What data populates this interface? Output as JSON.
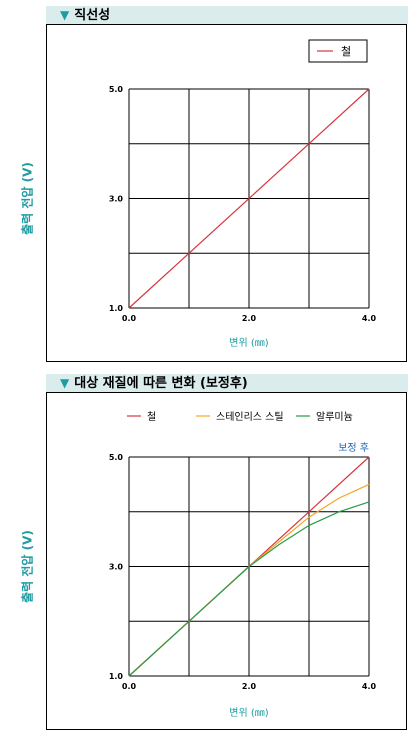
{
  "charts": [
    {
      "header": "직선성",
      "ylabel": "출력 전압 (V)",
      "xlabel": "변위 (㎜)",
      "chart_data": {
        "type": "line",
        "title": "직선성",
        "xlabel": "변위 (㎜)",
        "ylabel": "출력 전압 (V)",
        "xlim": [
          0,
          4
        ],
        "ylim": [
          1,
          5
        ],
        "xticks": [
          "0.0",
          "2.0",
          "4.0"
        ],
        "yticks": [
          "1.0",
          "3.0",
          "5.0"
        ],
        "grid": true,
        "legend": "top-right",
        "series": [
          {
            "name": "철",
            "color": "#d9363e",
            "x": [
              0,
              4
            ],
            "y": [
              1,
              5
            ]
          }
        ]
      }
    },
    {
      "header": "대상 재질에 따른 변화 (보정후)",
      "ylabel": "출력 전압 (V)",
      "xlabel": "변위 (㎜)",
      "annotation": "보정 후",
      "chart_data": {
        "type": "line",
        "title": "대상 재질에 따른 변화 (보정후)",
        "xlabel": "변위 (㎜)",
        "ylabel": "출력 전압 (V)",
        "xlim": [
          0,
          4
        ],
        "ylim": [
          1,
          5
        ],
        "xticks": [
          "0.0",
          "2.0",
          "4.0"
        ],
        "yticks": [
          "1.0",
          "3.0",
          "5.0"
        ],
        "grid": true,
        "legend": "top",
        "annotations": [
          "보정 후"
        ],
        "series": [
          {
            "name": "철",
            "color": "#d9363e",
            "x": [
              0,
              1,
              2,
              3,
              4
            ],
            "y": [
              1,
              2,
              3,
              4,
              5
            ]
          },
          {
            "name": "스테인리스 스틸",
            "color": "#f5a623",
            "x": [
              0,
              1,
              2,
              2.5,
              3,
              3.5,
              4
            ],
            "y": [
              1,
              2,
              3,
              3.45,
              3.9,
              4.25,
              4.5
            ]
          },
          {
            "name": "알루미늄",
            "color": "#2a9a4a",
            "x": [
              0,
              1,
              2,
              2.5,
              3,
              3.5,
              4
            ],
            "y": [
              1,
              2,
              3,
              3.4,
              3.75,
              4.0,
              4.18
            ]
          }
        ]
      }
    }
  ]
}
